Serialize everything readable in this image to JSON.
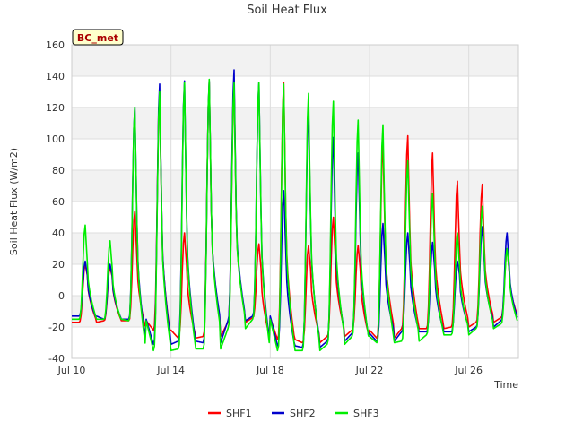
{
  "chart_data": {
    "type": "line",
    "title": "Soil Heat Flux",
    "xlabel": "Time",
    "ylabel": "Soil Heat Flux (W/m2)",
    "badge": "BC_met",
    "xlim": [
      0,
      18
    ],
    "ylim": [
      -40,
      160
    ],
    "yticks": [
      -40,
      -20,
      0,
      20,
      40,
      60,
      80,
      100,
      120,
      140,
      160
    ],
    "xticks": [
      {
        "day": 0,
        "label": "Jul 10"
      },
      {
        "day": 4,
        "label": "Jul 14"
      },
      {
        "day": 8,
        "label": "Jul 18"
      },
      {
        "day": 12,
        "label": "Jul 22"
      },
      {
        "day": 16,
        "label": "Jul 26"
      }
    ],
    "days": [
      10,
      11,
      12,
      13,
      14,
      15,
      16,
      17,
      18,
      19,
      20,
      21,
      22,
      23,
      24,
      25,
      26,
      27
    ],
    "series": [
      {
        "name": "SHF1",
        "color": "#ff0000",
        "peaks": [
          20,
          18,
          54,
          130,
          40,
          136,
          137,
          33,
          136,
          32,
          50,
          32,
          97,
          102,
          91,
          73,
          71,
          30
        ],
        "mins": [
          -17,
          -16,
          -16,
          -22,
          -27,
          -26,
          -17,
          -14,
          -28,
          -30,
          -26,
          -22,
          -27,
          -21,
          -21,
          -20,
          -17,
          -14
        ]
      },
      {
        "name": "SHF2",
        "color": "#0000cc",
        "peaks": [
          22,
          20,
          120,
          135,
          137,
          137,
          144,
          136,
          67,
          119,
          101,
          91,
          46,
          40,
          34,
          22,
          44,
          40
        ],
        "mins": [
          -13,
          -15,
          -15,
          -31,
          -29,
          -30,
          -16,
          -13,
          -32,
          -33,
          -29,
          -24,
          -29,
          -23,
          -23,
          -23,
          -20,
          -16
        ]
      },
      {
        "name": "SHF3",
        "color": "#00ee00",
        "peaks": [
          45,
          35,
          120,
          130,
          136,
          138,
          136,
          136,
          135,
          129,
          124,
          112,
          109,
          86,
          65,
          40,
          57,
          30
        ],
        "mins": [
          -15,
          -15,
          -16,
          -35,
          -34,
          -34,
          -21,
          -15,
          -35,
          -35,
          -31,
          -26,
          -30,
          -29,
          -25,
          -25,
          -21,
          -18
        ]
      }
    ],
    "legend_position": "bottom-center",
    "grid": true
  }
}
